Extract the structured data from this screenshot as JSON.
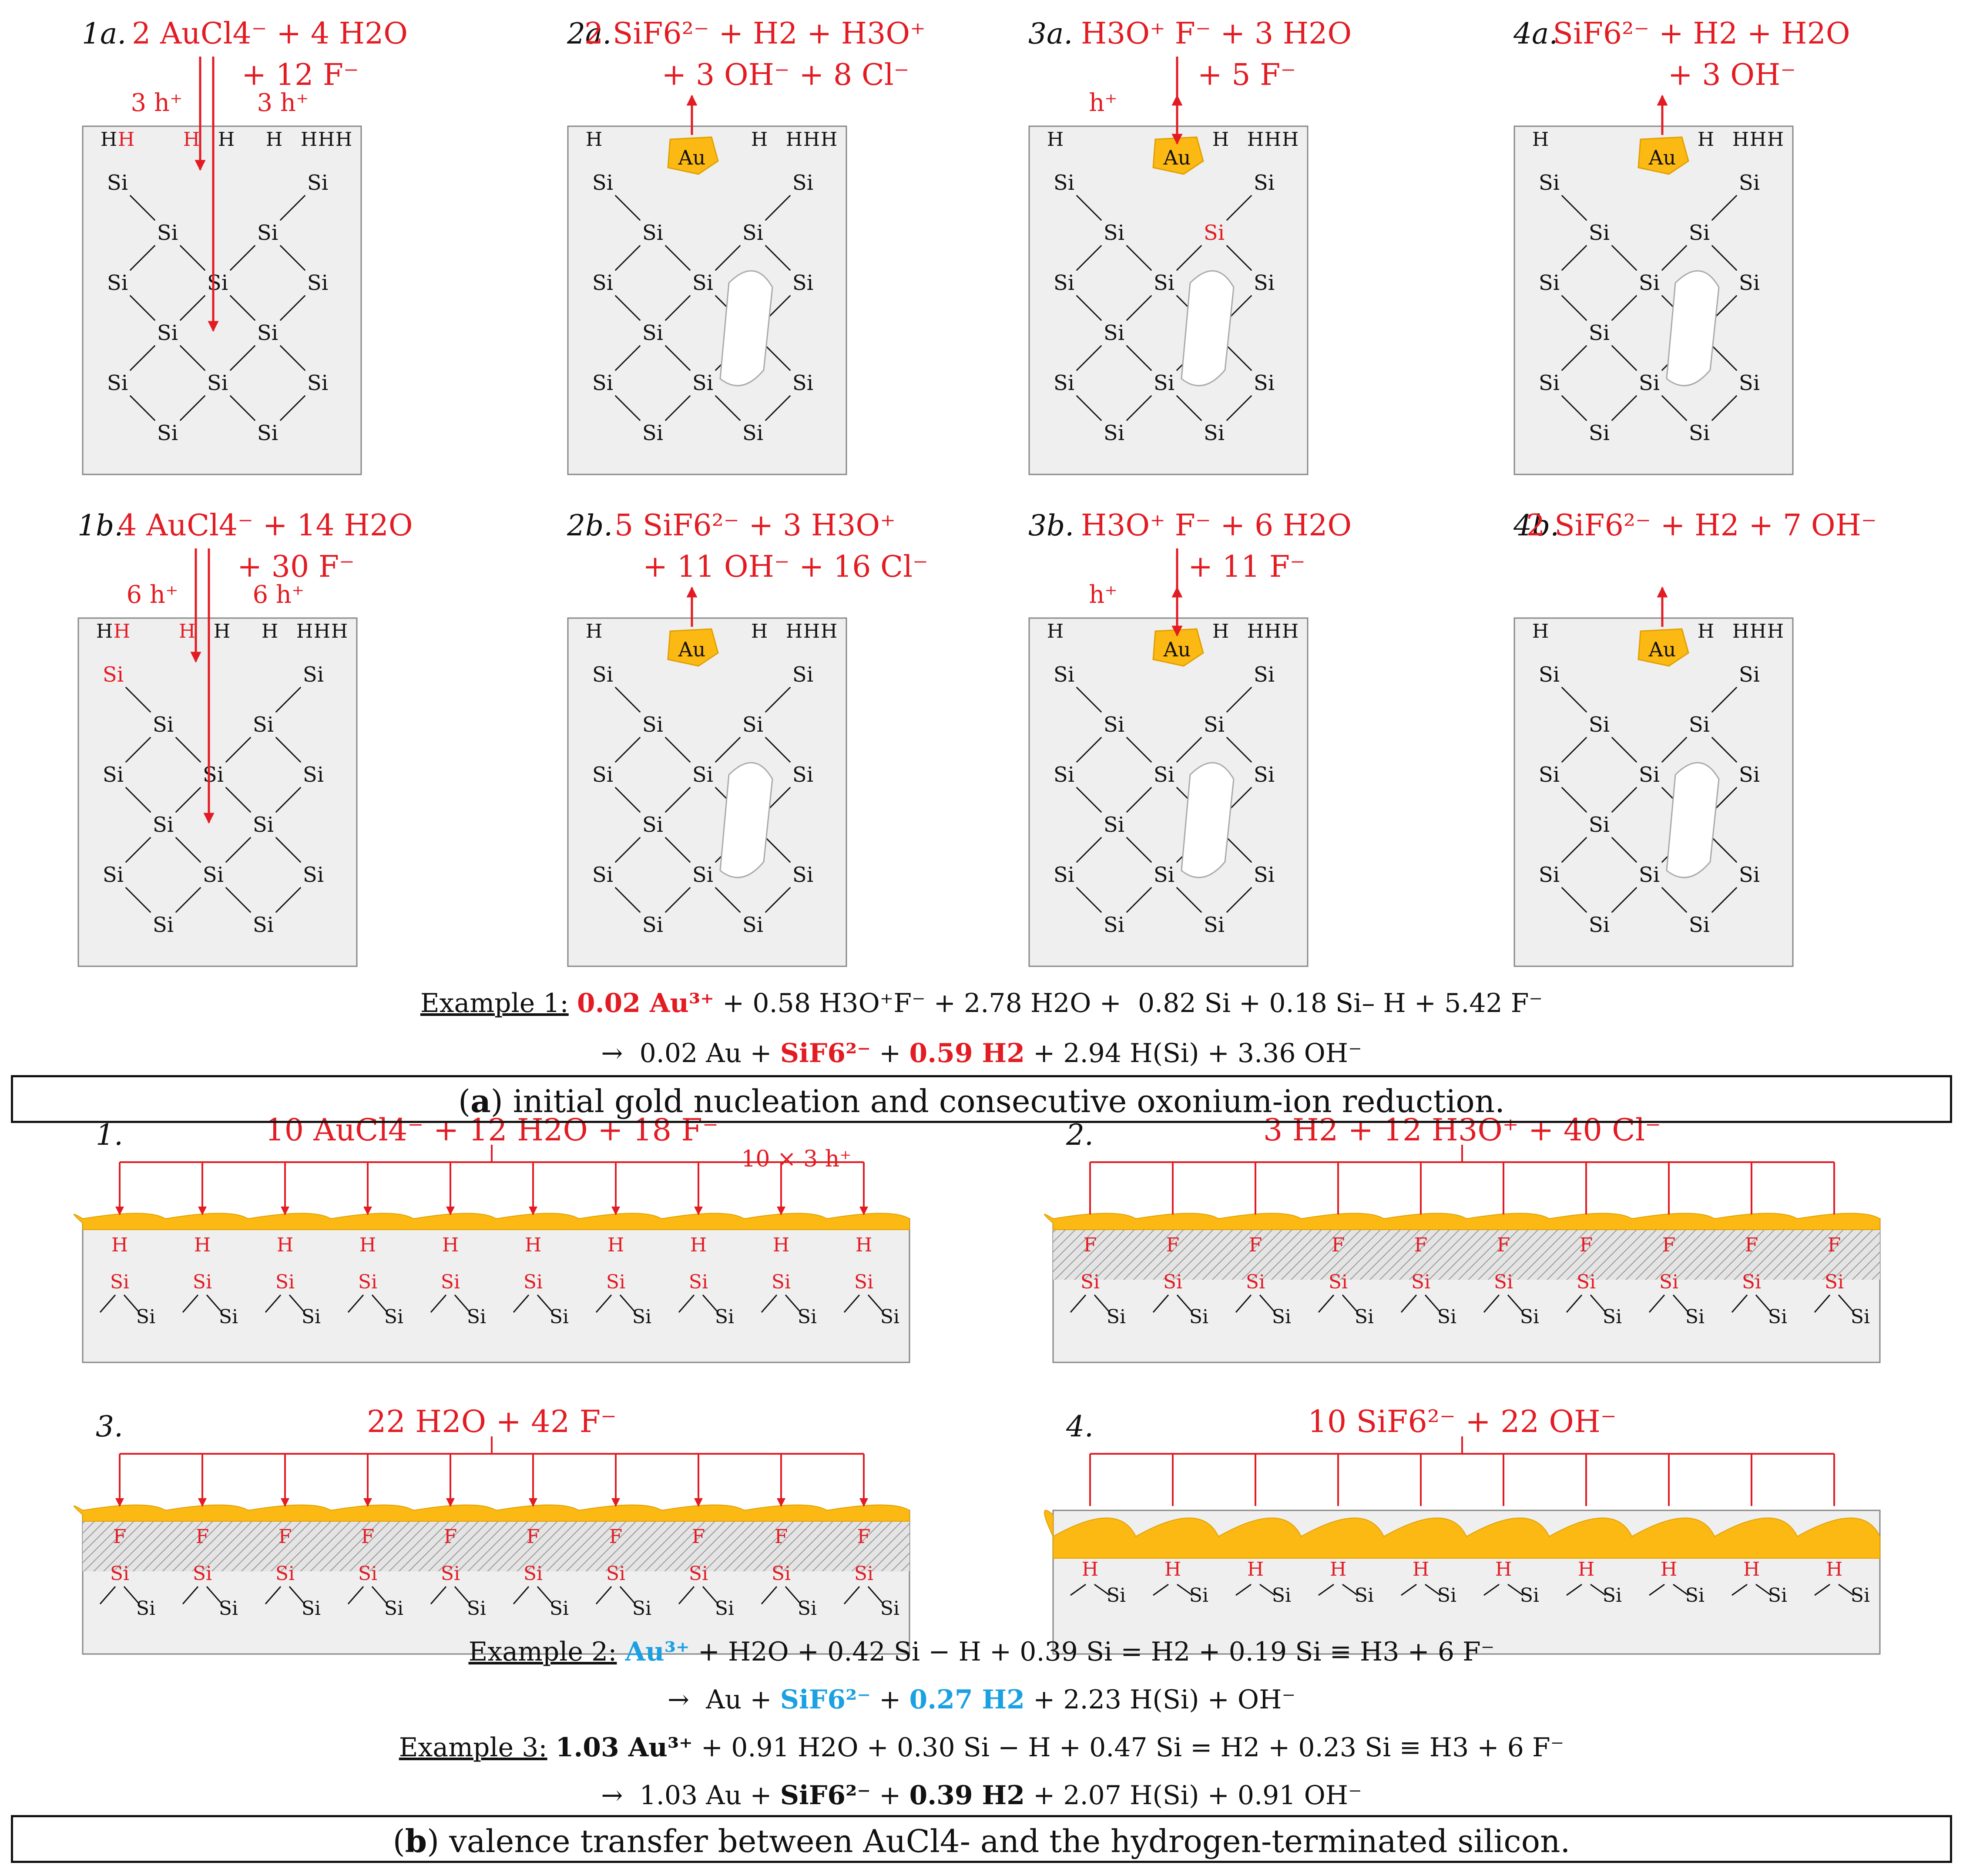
{
  "part_a": {
    "panels": [
      {
        "id": "1a",
        "label": "1a.",
        "lines": [
          "2 AuCl4⁻ + 4 H2O",
          "+ 12 F⁻"
        ],
        "holes_left": "3 h⁺",
        "holes_right": "3 h⁺"
      },
      {
        "id": "2a",
        "label": "2a.",
        "lines": [
          "2 SiF6²⁻ + H2 + H3O⁺",
          "+ 3 OH⁻ + 8 Cl⁻"
        ]
      },
      {
        "id": "3a",
        "label": "3a.",
        "lines": [
          "H3O⁺ F⁻ + 3 H2O",
          "+ 5 F⁻"
        ],
        "holes_left": "h⁺"
      },
      {
        "id": "4a",
        "label": "4a.",
        "lines": [
          "SiF6²⁻ + H2 + H2O",
          "+ 3 OH⁻"
        ]
      },
      {
        "id": "1b",
        "label": "1b.",
        "lines": [
          "4 AuCl4⁻ + 14 H2O",
          "+ 30 F⁻"
        ],
        "holes_left": "6 h⁺",
        "holes_right": "6 h⁺"
      },
      {
        "id": "2b",
        "label": "2b.",
        "lines": [
          "5 SiF6²⁻ + 3 H3O⁺",
          "+ 11 OH⁻ + 16 Cl⁻"
        ]
      },
      {
        "id": "3b",
        "label": "3b.",
        "lines": [
          "H3O⁺ F⁻ + 6 H2O",
          "+ 11 F⁻"
        ],
        "holes_left": "h⁺"
      },
      {
        "id": "4b",
        "label": "4b.",
        "lines": [
          "2 SiF6²⁻ + H2 + 7 OH⁻"
        ]
      }
    ],
    "au_label": "Au",
    "atom_si": "Si",
    "atom_h": "H",
    "example1": {
      "title": "Example 1:",
      "line1": {
        "highlight": "0.02 Au³⁺",
        "rest": " + 0.58 H3O⁺F⁻ + 2.78 H2O +  0.82 Si + 0.18 Si– H + 5.42 F⁻"
      },
      "line2": {
        "pre": "→  0.02 Au + ",
        "h1": "SiF6²⁻",
        "mid": " + ",
        "h2": "0.59 H2",
        "post": " + 2.94 H(Si) + 3.36 OH⁻"
      }
    },
    "caption": {
      "letter": "a",
      "text": " initial gold nucleation and consecutive oxonium-ion reduction."
    }
  },
  "part_b": {
    "panels": [
      {
        "id": "b1",
        "label": "1.",
        "equation": "10 AuCl4⁻ + 12 H2O + 18 F⁻",
        "note": "10 × 3 h⁺"
      },
      {
        "id": "b2",
        "label": "2.",
        "equation": "3 H2 + 12 H3O⁺ + 40 Cl⁻"
      },
      {
        "id": "b3",
        "label": "3.",
        "equation": "22 H2O + 42 F⁻"
      },
      {
        "id": "b4",
        "label": "4.",
        "equation": "10 SiF6²⁻ + 22 OH⁻"
      }
    ],
    "atom_f": "F",
    "example2": {
      "title": "Example 2:",
      "line1": {
        "highlight": "Au³⁺",
        "rest": " + H2O + 0.42 Si − H + 0.39 Si = H2 + 0.19 Si ≡ H3 + 6 F⁻"
      },
      "line2": {
        "pre": "→  Au + ",
        "h1": "SiF6²⁻",
        "mid": " + ",
        "h2": "0.27 H2",
        "post": " + 2.23 H(Si) + OH⁻"
      }
    },
    "example3": {
      "title": "Example 3:",
      "line1": {
        "highlight": "1.03 Au³⁺",
        "rest": " + 0.91 H2O + 0.30 Si − H + 0.47 Si = H2 + 0.23 Si ≡ H3 + 6 F⁻"
      },
      "line2": {
        "pre": "→  1.03 Au + ",
        "h1": "SiF6²⁻",
        "mid": " + ",
        "h2": "0.39 H2",
        "post": " + 2.07 H(Si) + 0.91 OH⁻"
      }
    },
    "caption": {
      "letter": "b",
      "text": " valence transfer between AuCl4- and the hydrogen-terminated silicon."
    }
  },
  "colors": {
    "red": "#e31b23",
    "blue": "#1ba1e2",
    "gold": "#fdb913",
    "grey": "#efefef",
    "black": "#111111"
  }
}
